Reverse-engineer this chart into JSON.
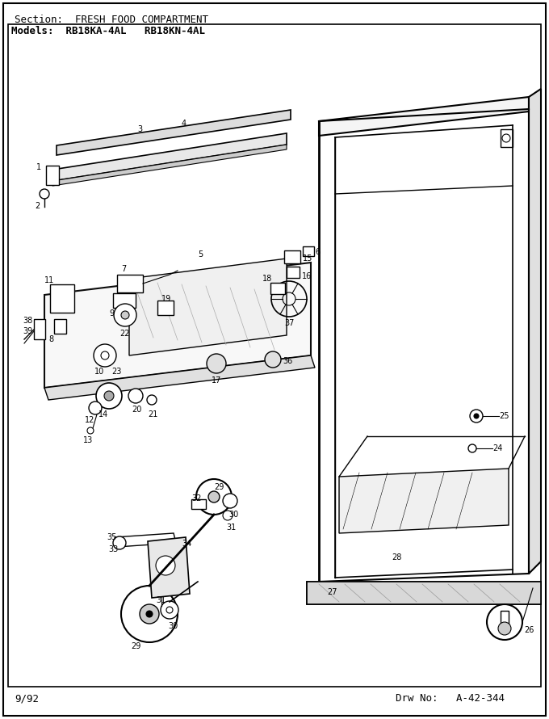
{
  "title_section": "Section:  FRESH FOOD COMPARTMENT",
  "title_models": "Models:  RB18KA-4AL   RB18KN-4AL",
  "footer_left": "9/92",
  "footer_right": "Drw No:   A-42-344",
  "bg_color": "#ffffff",
  "border_color": "#000000",
  "text_color": "#000000",
  "fig_width": 6.8,
  "fig_height": 8.9,
  "dpi": 100
}
